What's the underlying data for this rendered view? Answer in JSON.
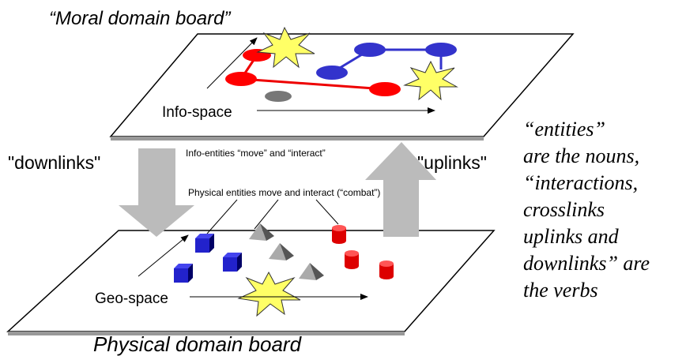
{
  "header": {
    "title": "“Moral domain board”"
  },
  "top_board": {
    "label": "Info-space",
    "note": "Info-entities “move” and “interact”"
  },
  "downlinks": "\"downlinks\"",
  "uplinks": "\"uplinks\"",
  "bottom_board": {
    "label": "Geo-space",
    "note": "Physical entities move and interact (“combat”)",
    "title": "Physical domain board"
  },
  "side_text": [
    "“entities”",
    "are the nouns,",
    "“interactions,",
    "crosslinks",
    "uplinks and",
    "downlinks” are",
    "the verbs"
  ]
}
